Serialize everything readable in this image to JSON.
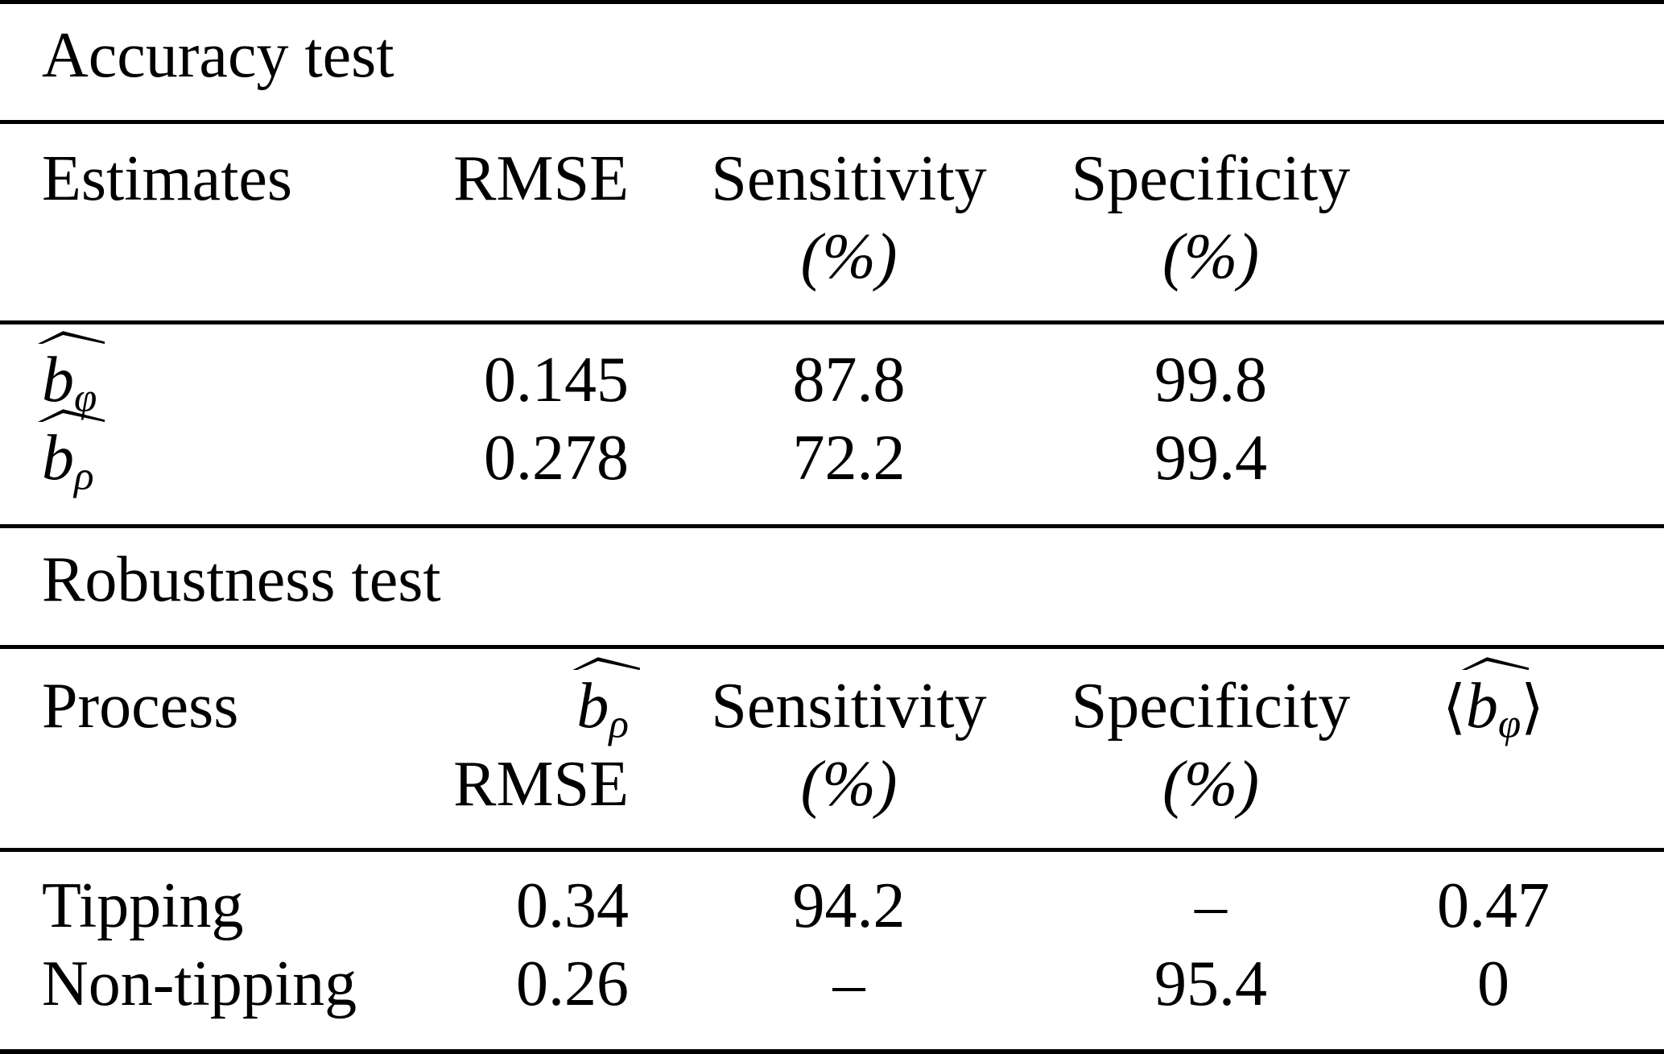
{
  "accuracy": {
    "title": "Accuracy test",
    "header": {
      "estimates": "Estimates",
      "rmse": "RMSE",
      "sensitivity": "Sensitivity",
      "specificity": "Specificity",
      "percent": "(%)"
    },
    "rows": [
      {
        "var": "b",
        "sub": "φ",
        "rmse": "0.145",
        "sensitivity": "87.8",
        "specificity": "99.8"
      },
      {
        "var": "b",
        "sub": "ρ",
        "rmse": "0.278",
        "sensitivity": "72.2",
        "specificity": "99.4"
      }
    ]
  },
  "robustness": {
    "title": "Robustness test",
    "header": {
      "process": "Process",
      "est_var": "b",
      "est_sub": "ρ",
      "rmse": "RMSE",
      "sensitivity": "Sensitivity",
      "specificity": "Specificity",
      "percent": "(%)",
      "mean_open": "⟨",
      "mean_var": "b",
      "mean_sub": "φ",
      "mean_close": "⟩"
    },
    "rows": [
      {
        "process": "Tipping",
        "rmse": "0.34",
        "sensitivity": "94.2",
        "specificity": "–",
        "mean": "0.47"
      },
      {
        "process": "Non-tipping",
        "rmse": "0.26",
        "sensitivity": "–",
        "specificity": "95.4",
        "mean": "0"
      }
    ]
  }
}
